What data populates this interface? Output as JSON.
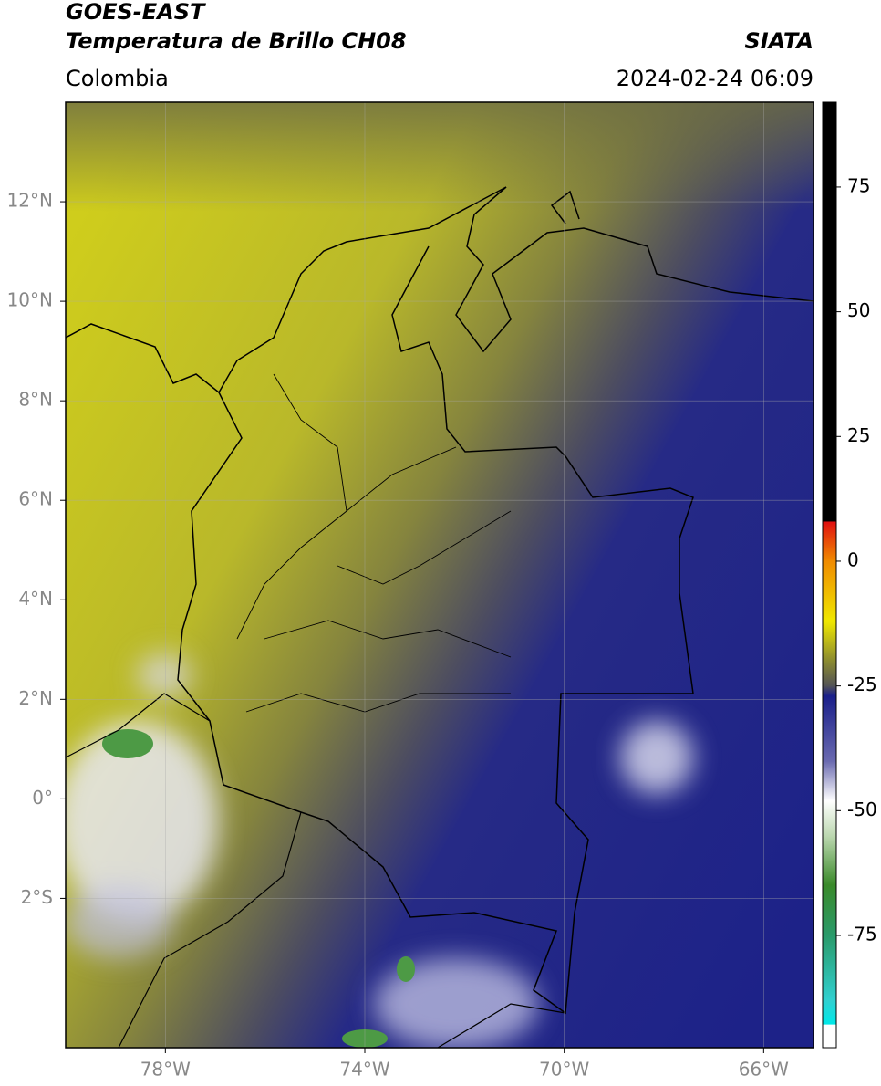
{
  "header": {
    "satellite": "GOES-EAST",
    "product": "Temperatura de Brillo CH08",
    "agency": "SIATA",
    "region": "Colombia",
    "datetime": "2024-02-24 06:09"
  },
  "map": {
    "xlim": [
      -80,
      -65
    ],
    "ylim": [
      -5,
      14
    ],
    "xticks": [
      {
        "value": -78,
        "label": "78°W"
      },
      {
        "value": -74,
        "label": "74°W"
      },
      {
        "value": -70,
        "label": "70°W"
      },
      {
        "value": -66,
        "label": "66°W"
      }
    ],
    "yticks": [
      {
        "value": 12,
        "label": "12°N"
      },
      {
        "value": 10,
        "label": "10°N"
      },
      {
        "value": 8,
        "label": "8°N"
      },
      {
        "value": 6,
        "label": "6°N"
      },
      {
        "value": 4,
        "label": "4°N"
      },
      {
        "value": 2,
        "label": "2°N"
      },
      {
        "value": 0,
        "label": "0°"
      },
      {
        "value": -2,
        "label": "2°S"
      }
    ]
  },
  "colorbar": {
    "lim": [
      -97.5,
      92
    ],
    "ticks": [
      75,
      50,
      25,
      0,
      -25,
      -50,
      -75
    ]
  }
}
